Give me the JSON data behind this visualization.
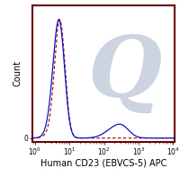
{
  "xlabel": "Human CD23 (EBVCS-5) APC",
  "ylabel": "Count",
  "background_color": "#ffffff",
  "border_color": "#6b0000",
  "watermark_text": "Q",
  "watermark_color": "#ccd4e0",
  "solid_line_color": "#1010cc",
  "dashed_line_color": "#aa1010",
  "xlabel_fontsize": 7.0,
  "ylabel_fontsize": 7.0,
  "tick_fontsize": 5.5
}
